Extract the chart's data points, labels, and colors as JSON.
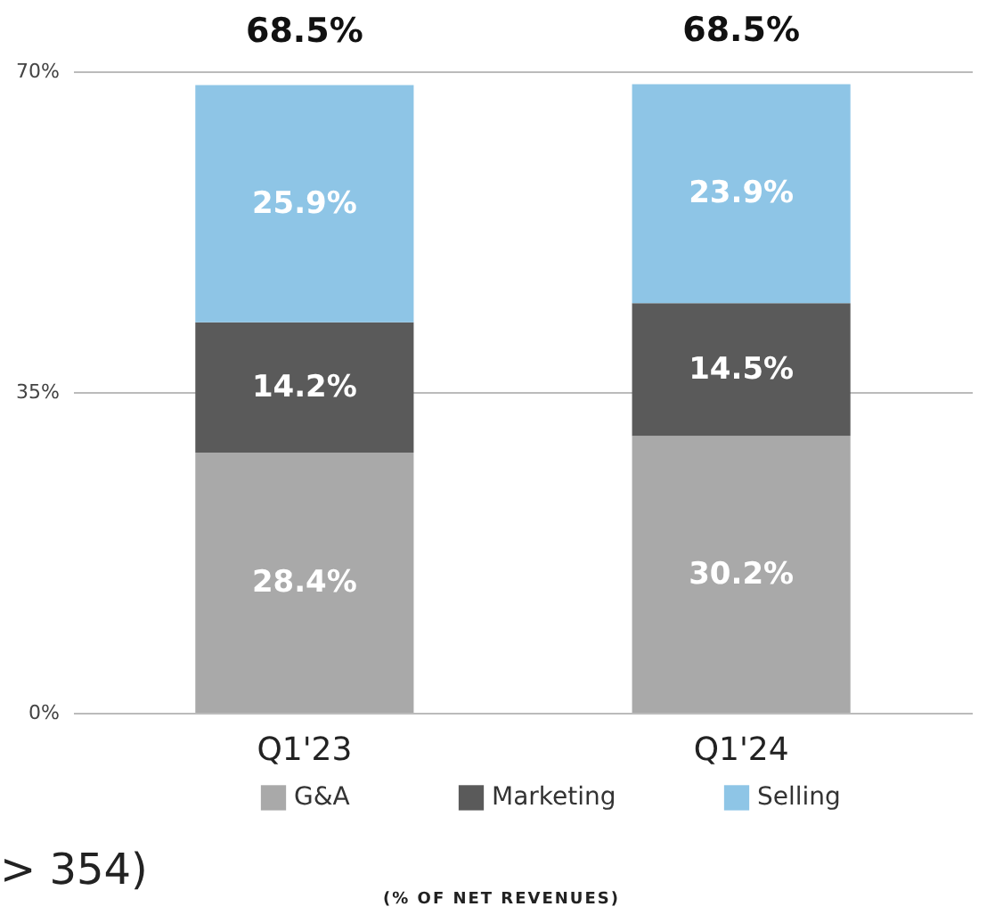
{
  "chart_data": {
    "type": "bar",
    "stacked": true,
    "categories": [
      "Q1'23",
      "Q1'24"
    ],
    "series": [
      {
        "name": "G&A",
        "color": "#a9a9a9",
        "values": [
          28.4,
          30.2
        ],
        "value_labels": [
          "28.4%",
          "30.2%"
        ]
      },
      {
        "name": "Marketing",
        "color": "#5a5a5a",
        "values": [
          14.2,
          14.5
        ],
        "value_labels": [
          "14.2%",
          "14.5%"
        ]
      },
      {
        "name": "Selling",
        "color": "#8ec5e6",
        "values": [
          25.9,
          23.9
        ],
        "value_labels": [
          "25.9%",
          "23.9%"
        ]
      }
    ],
    "ylim": [
      0,
      70
    ],
    "yticks": [
      {
        "value": 0,
        "label": "0%"
      },
      {
        "value": 35,
        "label": "35%"
      },
      {
        "value": 70,
        "label": "70%"
      }
    ],
    "totals": [
      "68.5%",
      "68.5%"
    ],
    "grid": "y",
    "legend": "bottom",
    "annotations": [
      "> 354)",
      "(% OF NET REVENUES)"
    ]
  }
}
